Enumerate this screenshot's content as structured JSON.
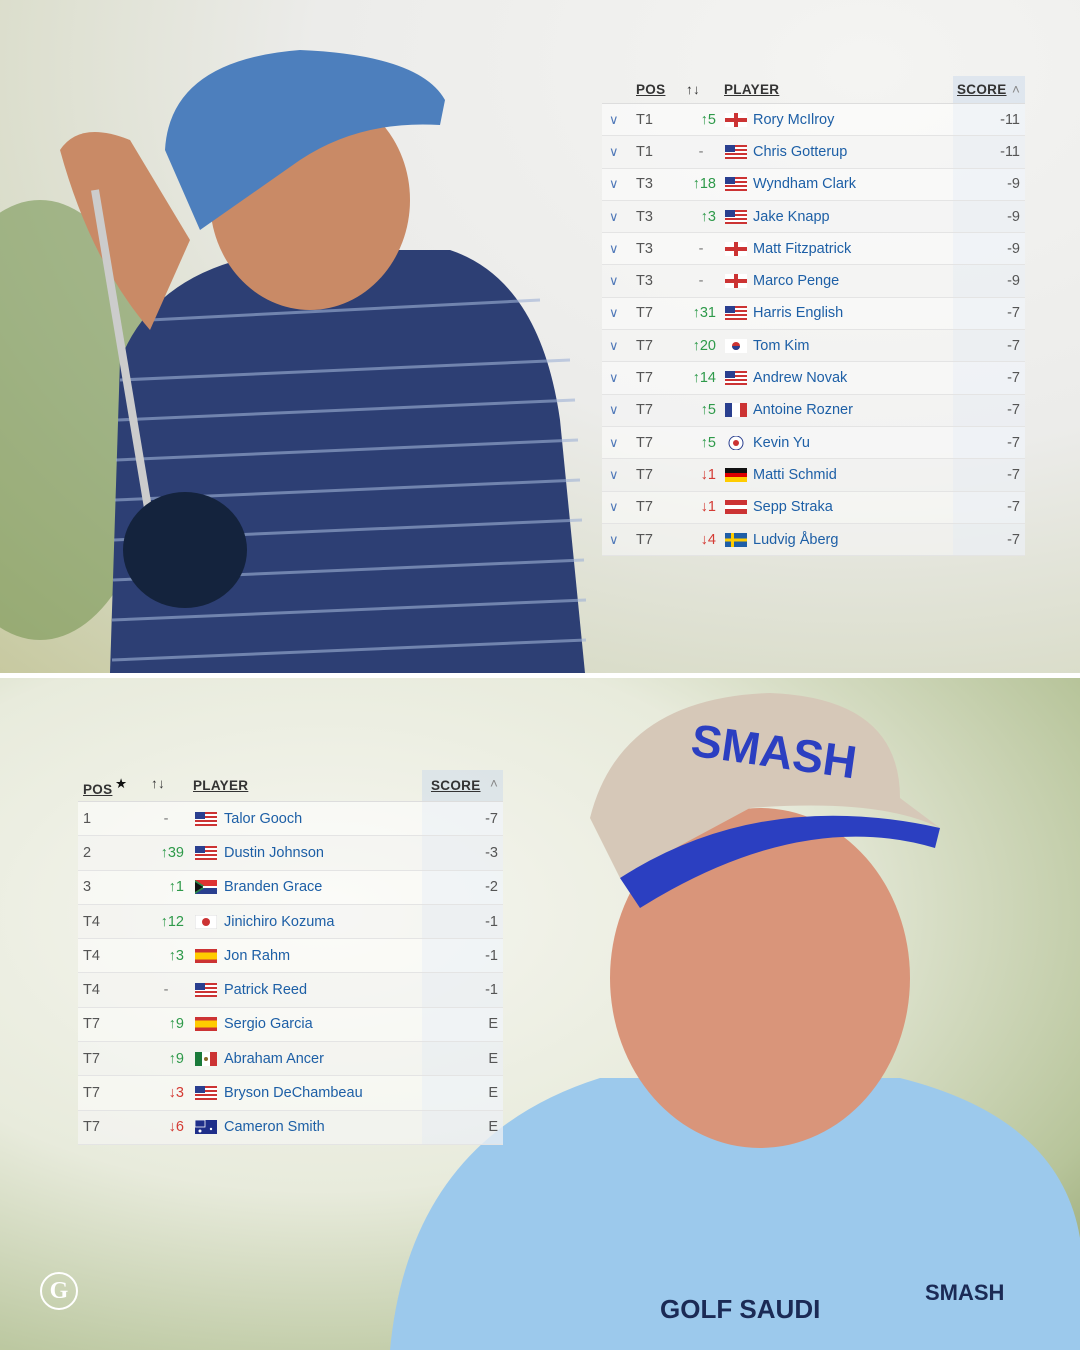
{
  "top_table": {
    "headers": {
      "pos": "POS",
      "move": "↑↓",
      "player": "PLAYER",
      "score": "SCORE",
      "sort": "˄"
    },
    "rows": [
      {
        "pos": "T1",
        "move": "5",
        "dir": "up",
        "flag": "nir",
        "player": "Rory McIlroy",
        "score": "-11"
      },
      {
        "pos": "T1",
        "move": "-",
        "dir": "none",
        "flag": "usa",
        "player": "Chris Gotterup",
        "score": "-11"
      },
      {
        "pos": "T3",
        "move": "18",
        "dir": "up",
        "flag": "usa",
        "player": "Wyndham Clark",
        "score": "-9"
      },
      {
        "pos": "T3",
        "move": "3",
        "dir": "up",
        "flag": "usa",
        "player": "Jake Knapp",
        "score": "-9"
      },
      {
        "pos": "T3",
        "move": "-",
        "dir": "none",
        "flag": "eng",
        "player": "Matt Fitzpatrick",
        "score": "-9"
      },
      {
        "pos": "T3",
        "move": "-",
        "dir": "none",
        "flag": "eng",
        "player": "Marco Penge",
        "score": "-9"
      },
      {
        "pos": "T7",
        "move": "31",
        "dir": "up",
        "flag": "usa",
        "player": "Harris English",
        "score": "-7"
      },
      {
        "pos": "T7",
        "move": "20",
        "dir": "up",
        "flag": "kor",
        "player": "Tom Kim",
        "score": "-7"
      },
      {
        "pos": "T7",
        "move": "14",
        "dir": "up",
        "flag": "usa",
        "player": "Andrew Novak",
        "score": "-7"
      },
      {
        "pos": "T7",
        "move": "5",
        "dir": "up",
        "flag": "fra",
        "player": "Antoine Rozner",
        "score": "-7"
      },
      {
        "pos": "T7",
        "move": "5",
        "dir": "up",
        "flag": "tpe",
        "player": "Kevin Yu",
        "score": "-7"
      },
      {
        "pos": "T7",
        "move": "1",
        "dir": "down",
        "flag": "ger",
        "player": "Matti Schmid",
        "score": "-7"
      },
      {
        "pos": "T7",
        "move": "1",
        "dir": "down",
        "flag": "aut",
        "player": "Sepp Straka",
        "score": "-7"
      },
      {
        "pos": "T7",
        "move": "4",
        "dir": "down",
        "flag": "swe",
        "player": "Ludvig Åberg",
        "score": "-7"
      }
    ]
  },
  "bottom_table": {
    "headers": {
      "pos": "POS",
      "star": "★",
      "move": "↑↓",
      "player": "PLAYER",
      "score": "SCORE",
      "sort": "˄"
    },
    "rows": [
      {
        "pos": "1",
        "move": "-",
        "dir": "none",
        "flag": "usa",
        "player": "Talor Gooch",
        "score": "-7"
      },
      {
        "pos": "2",
        "move": "39",
        "dir": "up",
        "flag": "usa",
        "player": "Dustin Johnson",
        "score": "-3"
      },
      {
        "pos": "3",
        "move": "1",
        "dir": "up",
        "flag": "rsa",
        "player": "Branden Grace",
        "score": "-2"
      },
      {
        "pos": "T4",
        "move": "12",
        "dir": "up",
        "flag": "jpn",
        "player": "Jinichiro Kozuma",
        "score": "-1"
      },
      {
        "pos": "T4",
        "move": "3",
        "dir": "up",
        "flag": "esp",
        "player": "Jon Rahm",
        "score": "-1"
      },
      {
        "pos": "T4",
        "move": "-",
        "dir": "none",
        "flag": "usa",
        "player": "Patrick Reed",
        "score": "-1"
      },
      {
        "pos": "T7",
        "move": "9",
        "dir": "up",
        "flag": "esp",
        "player": "Sergio Garcia",
        "score": "E"
      },
      {
        "pos": "T7",
        "move": "9",
        "dir": "up",
        "flag": "mex",
        "player": "Abraham Ancer",
        "score": "E"
      },
      {
        "pos": "T7",
        "move": "3",
        "dir": "down",
        "flag": "usa",
        "player": "Bryson DeChambeau",
        "score": "E"
      },
      {
        "pos": "T7",
        "move": "6",
        "dir": "down",
        "flag": "aus",
        "player": "Cameron Smith",
        "score": "E"
      }
    ]
  },
  "photo_text": {
    "cap": "SMASH",
    "shirt_sponsor": "GOLF SAUDI",
    "shirt_logo": "SMASH"
  },
  "logo": "G",
  "colors": {
    "up": "#2e9a4a",
    "down": "#d43b34",
    "name": "#1d5fa6"
  }
}
